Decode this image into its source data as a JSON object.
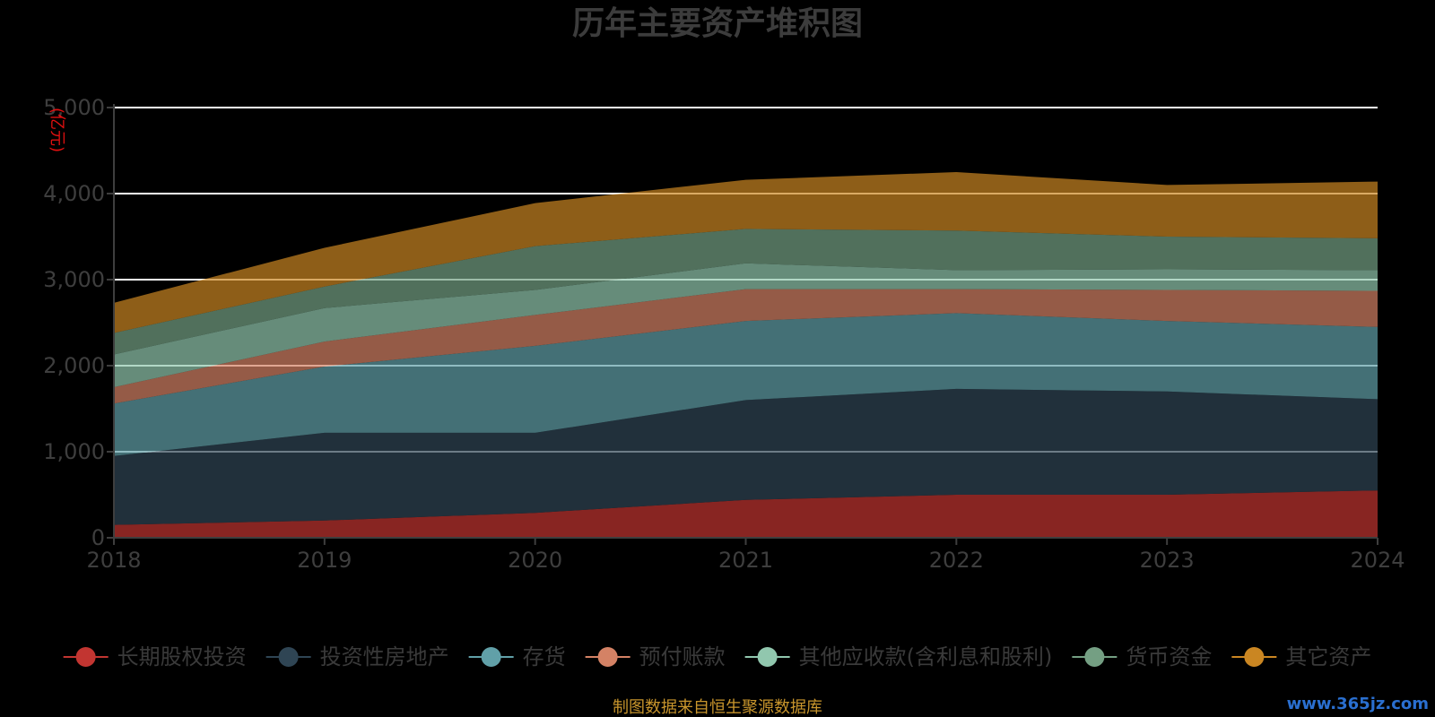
{
  "chart_data": {
    "type": "area",
    "stacked": true,
    "title": "历年主要资产堆积图",
    "unit_label": "(亿元)",
    "x": [
      "2018",
      "2019",
      "2020",
      "2021",
      "2022",
      "2023",
      "2024"
    ],
    "ylim": [
      0,
      5000
    ],
    "y_ticks": [
      "0",
      "1,000",
      "2,000",
      "3,000",
      "4,000",
      "5,000"
    ],
    "grid": true,
    "legend_position": "bottom",
    "series": [
      {
        "name": "长期股权投资",
        "color": "#c23531",
        "values": [
          150,
          200,
          290,
          440,
          500,
          500,
          550
        ]
      },
      {
        "name": "投资性房地产",
        "color": "#2f4554",
        "values": [
          800,
          1020,
          930,
          1160,
          1230,
          1200,
          1060
        ]
      },
      {
        "name": "存货",
        "color": "#61a0a8",
        "values": [
          610,
          770,
          1010,
          920,
          880,
          820,
          840
        ]
      },
      {
        "name": "预付账款",
        "color": "#d48265",
        "values": [
          190,
          290,
          360,
          370,
          280,
          360,
          420
        ]
      },
      {
        "name": "其他应收款(含利息和股利)",
        "color": "#91c7ae",
        "values": [
          380,
          390,
          290,
          300,
          220,
          240,
          240
        ]
      },
      {
        "name": "货币资金",
        "color": "#749f83",
        "values": [
          250,
          250,
          510,
          400,
          460,
          380,
          370
        ]
      },
      {
        "name": "其它资产",
        "color": "#ca8622",
        "values": [
          350,
          450,
          500,
          570,
          680,
          600,
          660
        ]
      }
    ]
  },
  "footer": {
    "source": "制图数据来自恒生聚源数据库",
    "watermark": "www.365jz.com"
  }
}
